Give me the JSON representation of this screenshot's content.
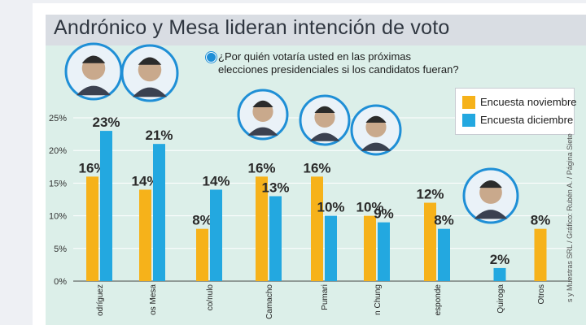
{
  "title": "Andrónico y Mesa lideran intención de voto",
  "question": "¿Por quién votaría usted en las próximas elecciones presidenciales si los candidatos fueran?",
  "credit": "s y Muestras SRL / Gráfico: Rubén A. / Página Siete",
  "colors": {
    "november": "#f6b21a",
    "december": "#23a8e0"
  },
  "chart_data": {
    "type": "bar",
    "categories": [
      "odríguez",
      "os Mesa",
      "co/nulo",
      "Camacho",
      "Pumari",
      "n Chung",
      "esponde",
      "Quiroga",
      "Otros"
    ],
    "series": [
      {
        "name": "Encuesta noviembre",
        "values": [
          16,
          14,
          8,
          16,
          16,
          10,
          12,
          null,
          8
        ],
        "labels": [
          "16%",
          "14%",
          "8%",
          "16%",
          "16%",
          "10%",
          "12%",
          "",
          "8%"
        ]
      },
      {
        "name": "Encuesta diciembre",
        "values": [
          23,
          21,
          14,
          13,
          10,
          9,
          8,
          2,
          null
        ],
        "labels": [
          "23%",
          "21%",
          "14%",
          "13%",
          "10%",
          "9%",
          "8%",
          "2%",
          ""
        ]
      }
    ],
    "ylim": [
      0,
      25
    ],
    "yticks": [
      0,
      5,
      10,
      15,
      20,
      25
    ],
    "ytick_labels": [
      "0%",
      "5%",
      "10%",
      "15%",
      "20%",
      "25%"
    ],
    "grid": true,
    "legend": "top-right"
  }
}
